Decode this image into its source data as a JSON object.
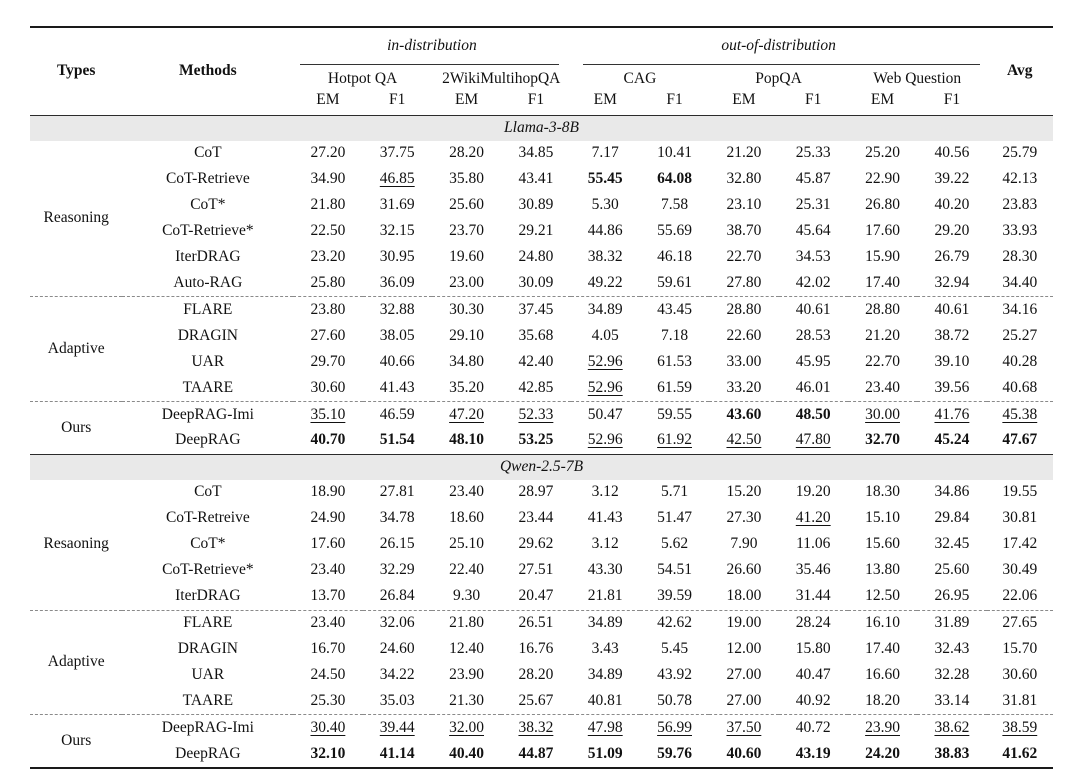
{
  "table": {
    "header": {
      "types": "Types",
      "methods": "Methods",
      "avg": "Avg",
      "group_in": "in-distribution",
      "group_out": "out-of-distribution",
      "datasets": [
        "Hotpot QA",
        "2WikiMultihopQA",
        "CAG",
        "PopQA",
        "Web Question"
      ],
      "metric_em": "EM",
      "metric_f1": "F1"
    },
    "style_colors": {
      "band_background": "#e9e9e9",
      "rule_color": "#1a1a1a",
      "text_color": "#111111"
    },
    "sections": [
      {
        "model": "Llama-3-8B",
        "groups": [
          {
            "type": "Reasoning",
            "rows": [
              {
                "method": "CoT",
                "values": [
                  "27.20",
                  "37.75",
                  "28.20",
                  "34.85",
                  "7.17",
                  "10.41",
                  "21.20",
                  "25.33",
                  "25.20",
                  "40.56",
                  "25.79"
                ],
                "fmt": "..........."
              },
              {
                "method": "CoT-Retrieve",
                "values": [
                  "34.90",
                  "46.85",
                  "35.80",
                  "43.41",
                  "55.45",
                  "64.08",
                  "32.80",
                  "45.87",
                  "22.90",
                  "39.22",
                  "42.13"
                ],
                "fmt": ".u..bb....."
              },
              {
                "method": "CoT*",
                "values": [
                  "21.80",
                  "31.69",
                  "25.60",
                  "30.89",
                  "5.30",
                  "7.58",
                  "23.10",
                  "25.31",
                  "26.80",
                  "40.20",
                  "23.83"
                ],
                "fmt": "..........."
              },
              {
                "method": "CoT-Retrieve*",
                "values": [
                  "22.50",
                  "32.15",
                  "23.70",
                  "29.21",
                  "44.86",
                  "55.69",
                  "38.70",
                  "45.64",
                  "17.60",
                  "29.20",
                  "33.93"
                ],
                "fmt": "..........."
              },
              {
                "method": "IterDRAG",
                "values": [
                  "23.20",
                  "30.95",
                  "19.60",
                  "24.80",
                  "38.32",
                  "46.18",
                  "22.70",
                  "34.53",
                  "15.90",
                  "26.79",
                  "28.30"
                ],
                "fmt": "..........."
              },
              {
                "method": "Auto-RAG",
                "values": [
                  "25.80",
                  "36.09",
                  "23.00",
                  "30.09",
                  "49.22",
                  "59.61",
                  "27.80",
                  "42.02",
                  "17.40",
                  "32.94",
                  "34.40"
                ],
                "fmt": "..........."
              }
            ]
          },
          {
            "type": "Adaptive",
            "rows": [
              {
                "method": "FLARE",
                "values": [
                  "23.80",
                  "32.88",
                  "30.30",
                  "37.45",
                  "34.89",
                  "43.45",
                  "28.80",
                  "40.61",
                  "28.80",
                  "40.61",
                  "34.16"
                ],
                "fmt": "..........."
              },
              {
                "method": "DRAGIN",
                "values": [
                  "27.60",
                  "38.05",
                  "29.10",
                  "35.68",
                  "4.05",
                  "7.18",
                  "22.60",
                  "28.53",
                  "21.20",
                  "38.72",
                  "25.27"
                ],
                "fmt": "..........."
              },
              {
                "method": "UAR",
                "values": [
                  "29.70",
                  "40.66",
                  "34.80",
                  "42.40",
                  "52.96",
                  "61.53",
                  "33.00",
                  "45.95",
                  "22.70",
                  "39.10",
                  "40.28"
                ],
                "fmt": "....u......"
              },
              {
                "method": "TAARE",
                "values": [
                  "30.60",
                  "41.43",
                  "35.20",
                  "42.85",
                  "52.96",
                  "61.59",
                  "33.20",
                  "46.01",
                  "23.40",
                  "39.56",
                  "40.68"
                ],
                "fmt": "....u......"
              }
            ]
          },
          {
            "type": "Ours",
            "rows": [
              {
                "method": "DeepRAG-Imi",
                "values": [
                  "35.10",
                  "46.59",
                  "47.20",
                  "52.33",
                  "50.47",
                  "59.55",
                  "43.60",
                  "48.50",
                  "30.00",
                  "41.76",
                  "45.38"
                ],
                "fmt": "u.uu..bbuuu"
              },
              {
                "method": "DeepRAG",
                "values": [
                  "40.70",
                  "51.54",
                  "48.10",
                  "53.25",
                  "52.96",
                  "61.92",
                  "42.50",
                  "47.80",
                  "32.70",
                  "45.24",
                  "47.67"
                ],
                "fmt": "bbbbuuuubbb"
              }
            ]
          }
        ]
      },
      {
        "model": "Qwen-2.5-7B",
        "groups": [
          {
            "type": "Resaoning",
            "rows": [
              {
                "method": "CoT",
                "values": [
                  "18.90",
                  "27.81",
                  "23.40",
                  "28.97",
                  "3.12",
                  "5.71",
                  "15.20",
                  "19.20",
                  "18.30",
                  "34.86",
                  "19.55"
                ],
                "fmt": "..........."
              },
              {
                "method": "CoT-Retreive",
                "values": [
                  "24.90",
                  "34.78",
                  "18.60",
                  "23.44",
                  "41.43",
                  "51.47",
                  "27.30",
                  "41.20",
                  "15.10",
                  "29.84",
                  "30.81"
                ],
                "fmt": ".......u..."
              },
              {
                "method": "CoT*",
                "values": [
                  "17.60",
                  "26.15",
                  "25.10",
                  "29.62",
                  "3.12",
                  "5.62",
                  "7.90",
                  "11.06",
                  "15.60",
                  "32.45",
                  "17.42"
                ],
                "fmt": "..........."
              },
              {
                "method": "CoT-Retrieve*",
                "values": [
                  "23.40",
                  "32.29",
                  "22.40",
                  "27.51",
                  "43.30",
                  "54.51",
                  "26.60",
                  "35.46",
                  "13.80",
                  "25.60",
                  "30.49"
                ],
                "fmt": "..........."
              },
              {
                "method": "IterDRAG",
                "values": [
                  "13.70",
                  "26.84",
                  "9.30",
                  "20.47",
                  "21.81",
                  "39.59",
                  "18.00",
                  "31.44",
                  "12.50",
                  "26.95",
                  "22.06"
                ],
                "fmt": "..........."
              }
            ]
          },
          {
            "type": "Adaptive",
            "rows": [
              {
                "method": "FLARE",
                "values": [
                  "23.40",
                  "32.06",
                  "21.80",
                  "26.51",
                  "34.89",
                  "42.62",
                  "19.00",
                  "28.24",
                  "16.10",
                  "31.89",
                  "27.65"
                ],
                "fmt": "..........."
              },
              {
                "method": "DRAGIN",
                "values": [
                  "16.70",
                  "24.60",
                  "12.40",
                  "16.76",
                  "3.43",
                  "5.45",
                  "12.00",
                  "15.80",
                  "17.40",
                  "32.43",
                  "15.70"
                ],
                "fmt": "..........."
              },
              {
                "method": "UAR",
                "values": [
                  "24.50",
                  "34.22",
                  "23.90",
                  "28.20",
                  "34.89",
                  "43.92",
                  "27.00",
                  "40.47",
                  "16.60",
                  "32.28",
                  "30.60"
                ],
                "fmt": "..........."
              },
              {
                "method": "TAARE",
                "values": [
                  "25.30",
                  "35.03",
                  "21.30",
                  "25.67",
                  "40.81",
                  "50.78",
                  "27.00",
                  "40.92",
                  "18.20",
                  "33.14",
                  "31.81"
                ],
                "fmt": "..........."
              }
            ]
          },
          {
            "type": "Ours",
            "rows": [
              {
                "method": "DeepRAG-Imi",
                "values": [
                  "30.40",
                  "39.44",
                  "32.00",
                  "38.32",
                  "47.98",
                  "56.99",
                  "37.50",
                  "40.72",
                  "23.90",
                  "38.62",
                  "38.59"
                ],
                "fmt": "uuuuuuu.uuu"
              },
              {
                "method": "DeepRAG",
                "values": [
                  "32.10",
                  "41.14",
                  "40.40",
                  "44.87",
                  "51.09",
                  "59.76",
                  "40.60",
                  "43.19",
                  "24.20",
                  "38.83",
                  "41.62"
                ],
                "fmt": "bbbbbbbbbbb"
              }
            ]
          }
        ]
      }
    ]
  }
}
